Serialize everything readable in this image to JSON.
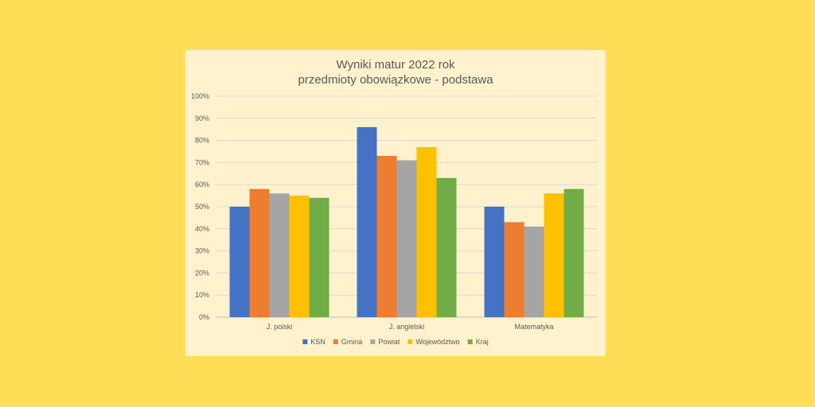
{
  "chart_data": {
    "type": "bar",
    "title": "Wyniki matur 2022 rok",
    "subtitle": "przedmioty obowiązkowe - podstawa",
    "categories": [
      "J. polski",
      "J. angielski",
      "Matematyka"
    ],
    "series": [
      {
        "name": "KSN",
        "color": "#4472C4",
        "values": [
          50,
          86,
          50
        ]
      },
      {
        "name": "Gmina",
        "color": "#ED7D31",
        "values": [
          58,
          73,
          43
        ]
      },
      {
        "name": "Powiat",
        "color": "#A5A5A5",
        "values": [
          56,
          71,
          41
        ]
      },
      {
        "name": "Województwo",
        "color": "#FFC000",
        "values": [
          55,
          77,
          56
        ]
      },
      {
        "name": "Kraj",
        "color": "#70AD47",
        "values": [
          54,
          63,
          58
        ]
      }
    ],
    "ylim": [
      0,
      100
    ],
    "y_ticks": [
      "0%",
      "10%",
      "20%",
      "30%",
      "40%",
      "50%",
      "60%",
      "70%",
      "80%",
      "90%",
      "100%"
    ],
    "grid": true,
    "legend_position": "bottom"
  },
  "colors": {
    "page_background": "#FFDD57",
    "chart_background": "#FFF2CC",
    "gridline": "#D9D9D9"
  }
}
